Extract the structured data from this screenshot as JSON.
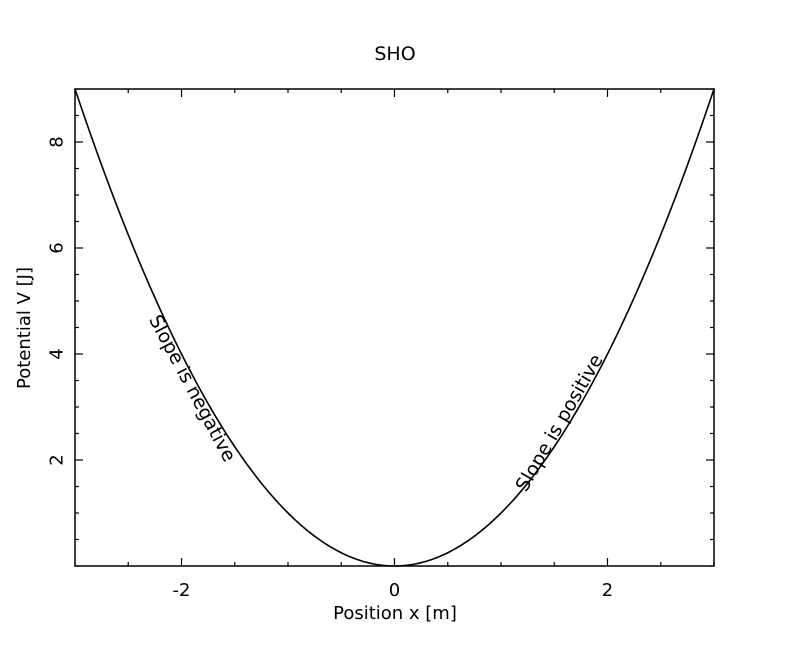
{
  "chart_data": {
    "type": "line",
    "title": "SHO",
    "xlabel": "Position x [m]",
    "ylabel": "Potential V [J]",
    "xlim": [
      -3,
      3
    ],
    "ylim": [
      0,
      9
    ],
    "x_ticks": [
      -2,
      0,
      2
    ],
    "x_tick_labels": [
      "-2",
      "0",
      "2"
    ],
    "y_ticks": [
      2,
      4,
      6,
      8
    ],
    "y_tick_labels": [
      "2",
      "4",
      "6",
      "8"
    ],
    "x_minor_step": 0.5,
    "y_minor_step": 0.5,
    "grid": false,
    "legend": "none",
    "series": [
      {
        "function": "V = x^2",
        "x": [
          -3,
          -2.5,
          -2,
          -1.5,
          -1,
          -0.5,
          0,
          0.5,
          1,
          1.5,
          2,
          2.5,
          3
        ],
        "y": [
          9,
          6.25,
          4,
          2.25,
          1,
          0.25,
          0,
          0.25,
          1,
          2.25,
          4,
          6.25,
          9
        ],
        "color": "#000000"
      }
    ],
    "annotations": [
      {
        "text": "Slope is negative",
        "x": -1.9,
        "y": 3.35,
        "angle_deg": 62
      },
      {
        "text": "Slope is positive",
        "x": 1.55,
        "y": 2.7,
        "angle_deg": -60
      }
    ]
  }
}
